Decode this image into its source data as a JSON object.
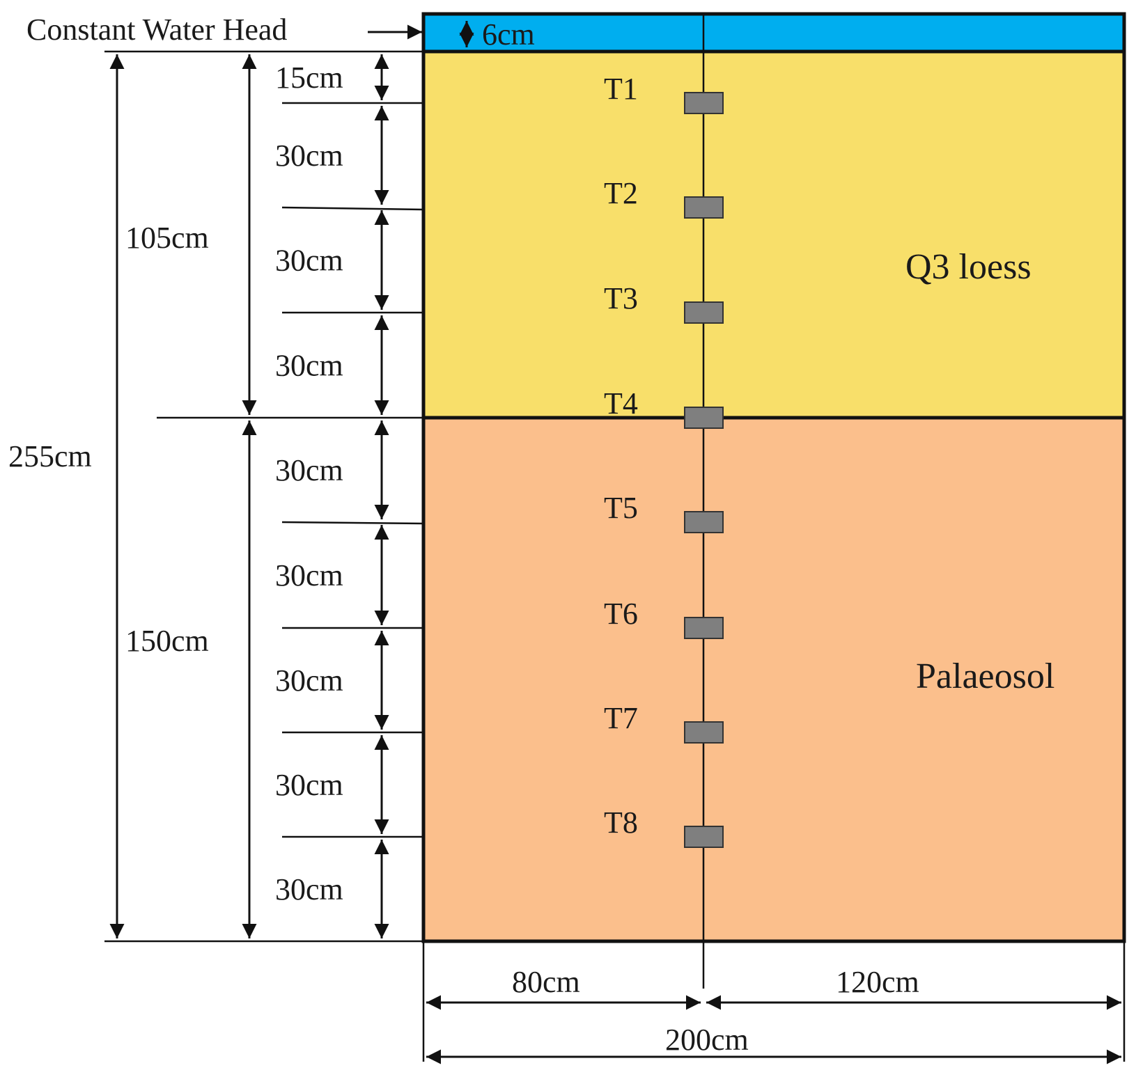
{
  "water_head": {
    "label": "Constant Water Head",
    "depth": "6cm",
    "color": "#00aeef"
  },
  "layers": [
    {
      "name": "Q3 loess",
      "color": "#f8df6a"
    },
    {
      "name": "Palaeosol",
      "color": "#fbbf8c"
    }
  ],
  "sensors": [
    "T1",
    "T2",
    "T3",
    "T4",
    "T5",
    "T6",
    "T7",
    "T8"
  ],
  "sensor_color": "#7f7f7f",
  "vertical_dims": {
    "total": "255cm",
    "upper": "105cm",
    "lower": "150cm",
    "segments": [
      "15cm",
      "30cm",
      "30cm",
      "30cm",
      "30cm",
      "30cm",
      "30cm",
      "30cm",
      "30cm"
    ]
  },
  "horizontal_dims": {
    "left": "80cm",
    "right": "120cm",
    "total": "200cm"
  }
}
